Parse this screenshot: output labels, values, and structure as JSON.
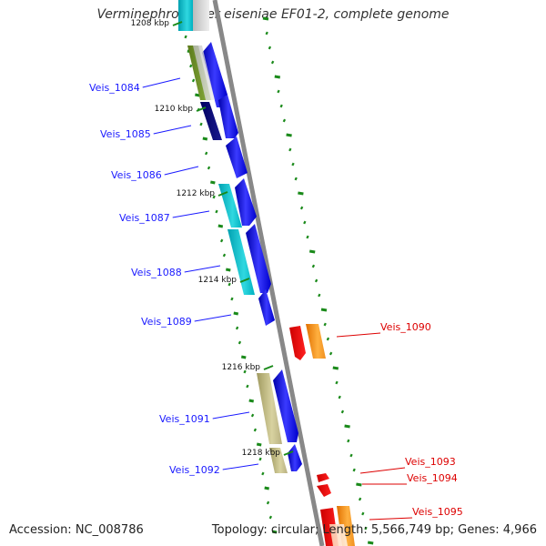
{
  "title": "Verminephrobacter eiseniae EF01-2, complete genome",
  "footer": {
    "accession": "Accession: NC_008786",
    "topology": "Topology: circular; Length: 5,566,749 bp; Genes: 4,966"
  },
  "ticks": [
    "1208 kbp",
    "1210 kbp",
    "1212 kbp",
    "1214 kbp",
    "1216 kbp",
    "1218 kbp"
  ],
  "genes_left": [
    "Veis_1084",
    "Veis_1085",
    "Veis_1086",
    "Veis_1087",
    "Veis_1088",
    "Veis_1089",
    "Veis_1091",
    "Veis_1092"
  ],
  "genes_right": [
    "Veis_1090",
    "Veis_1093",
    "Veis_1094",
    "Veis_1095"
  ],
  "colors": {
    "forward_label": "#1a1aff",
    "reverse_label": "#dd0000",
    "backbone": "#888888",
    "gc_dots": "#1a8a1a"
  }
}
